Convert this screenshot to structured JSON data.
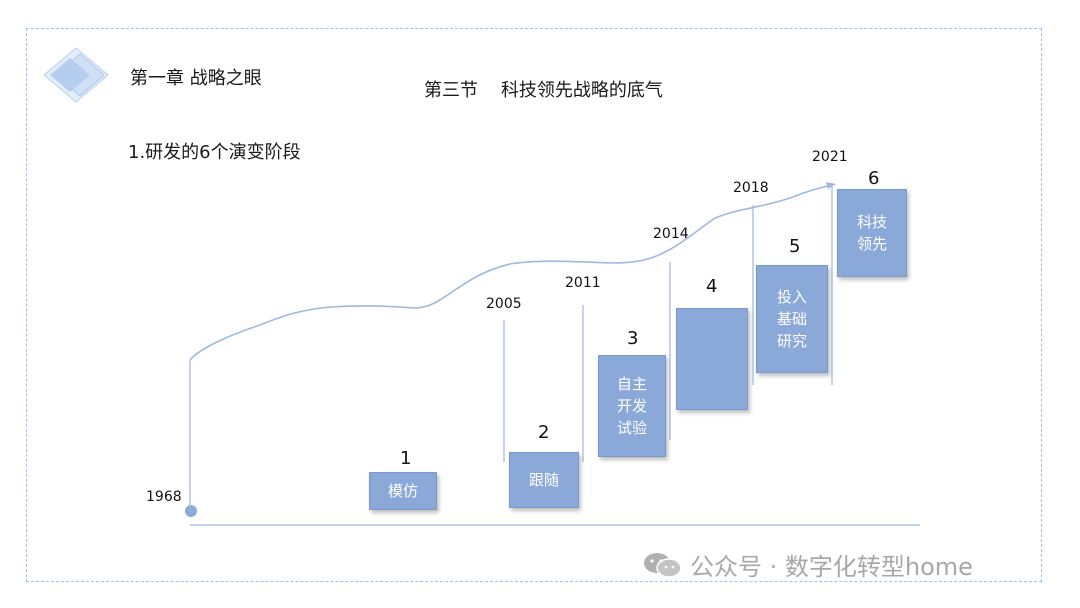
{
  "header": {
    "chapter": "第一章 战略之眼",
    "section": "第三节    科技领先战略的底气",
    "subtitle": "1.研发的6个演变阶段"
  },
  "years": [
    "1968",
    "2005",
    "2011",
    "2014",
    "2018",
    "2021"
  ],
  "stages": [
    {
      "number": "1",
      "label": "模仿"
    },
    {
      "number": "2",
      "label": "跟随"
    },
    {
      "number": "3",
      "label": "自主\n开发\n试验"
    },
    {
      "number": "4",
      "label": ""
    },
    {
      "number": "5",
      "label": "投入\n基础\n研究"
    },
    {
      "number": "6",
      "label": "科技\n领先"
    }
  ],
  "watermark": "公众号 · 数字化转型home",
  "colors": {
    "box": "#8aa8d8",
    "curve": "#9fb8e0",
    "border": "#9cc3e6"
  }
}
